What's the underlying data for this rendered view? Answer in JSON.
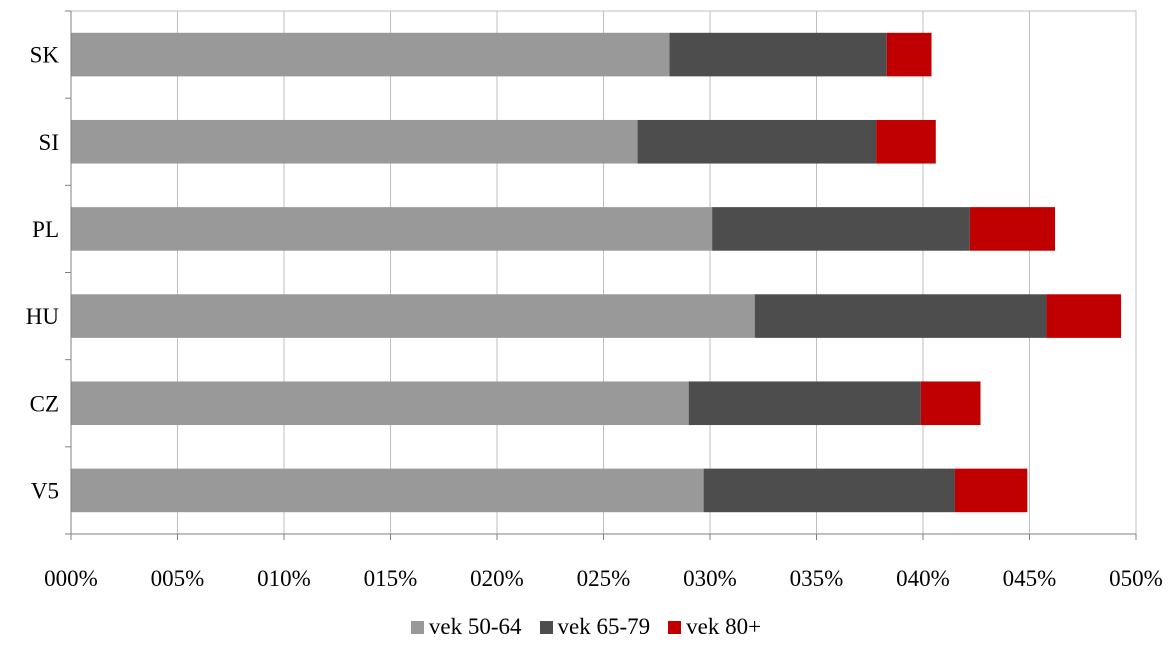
{
  "chart_data": {
    "type": "bar",
    "orientation": "horizontal",
    "stacked": true,
    "categories": [
      "SK",
      "SI",
      "PL",
      "HU",
      "CZ",
      "V5"
    ],
    "x_ticks": [
      "000%",
      "005%",
      "010%",
      "015%",
      "020%",
      "025%",
      "030%",
      "035%",
      "040%",
      "045%",
      "050%"
    ],
    "xlim": [
      0,
      0.5
    ],
    "grid": true,
    "legend_position": "bottom",
    "series": [
      {
        "name": "vek 50-64",
        "color": "#999999",
        "values": [
          0.281,
          0.266,
          0.301,
          0.321,
          0.29,
          0.297
        ]
      },
      {
        "name": "vek 65-79",
        "color": "#4d4d4d",
        "values": [
          0.102,
          0.112,
          0.121,
          0.137,
          0.109,
          0.118
        ]
      },
      {
        "name": "vek 80+",
        "color": "#c00000",
        "values": [
          0.021,
          0.028,
          0.04,
          0.035,
          0.028,
          0.034
        ]
      }
    ]
  }
}
